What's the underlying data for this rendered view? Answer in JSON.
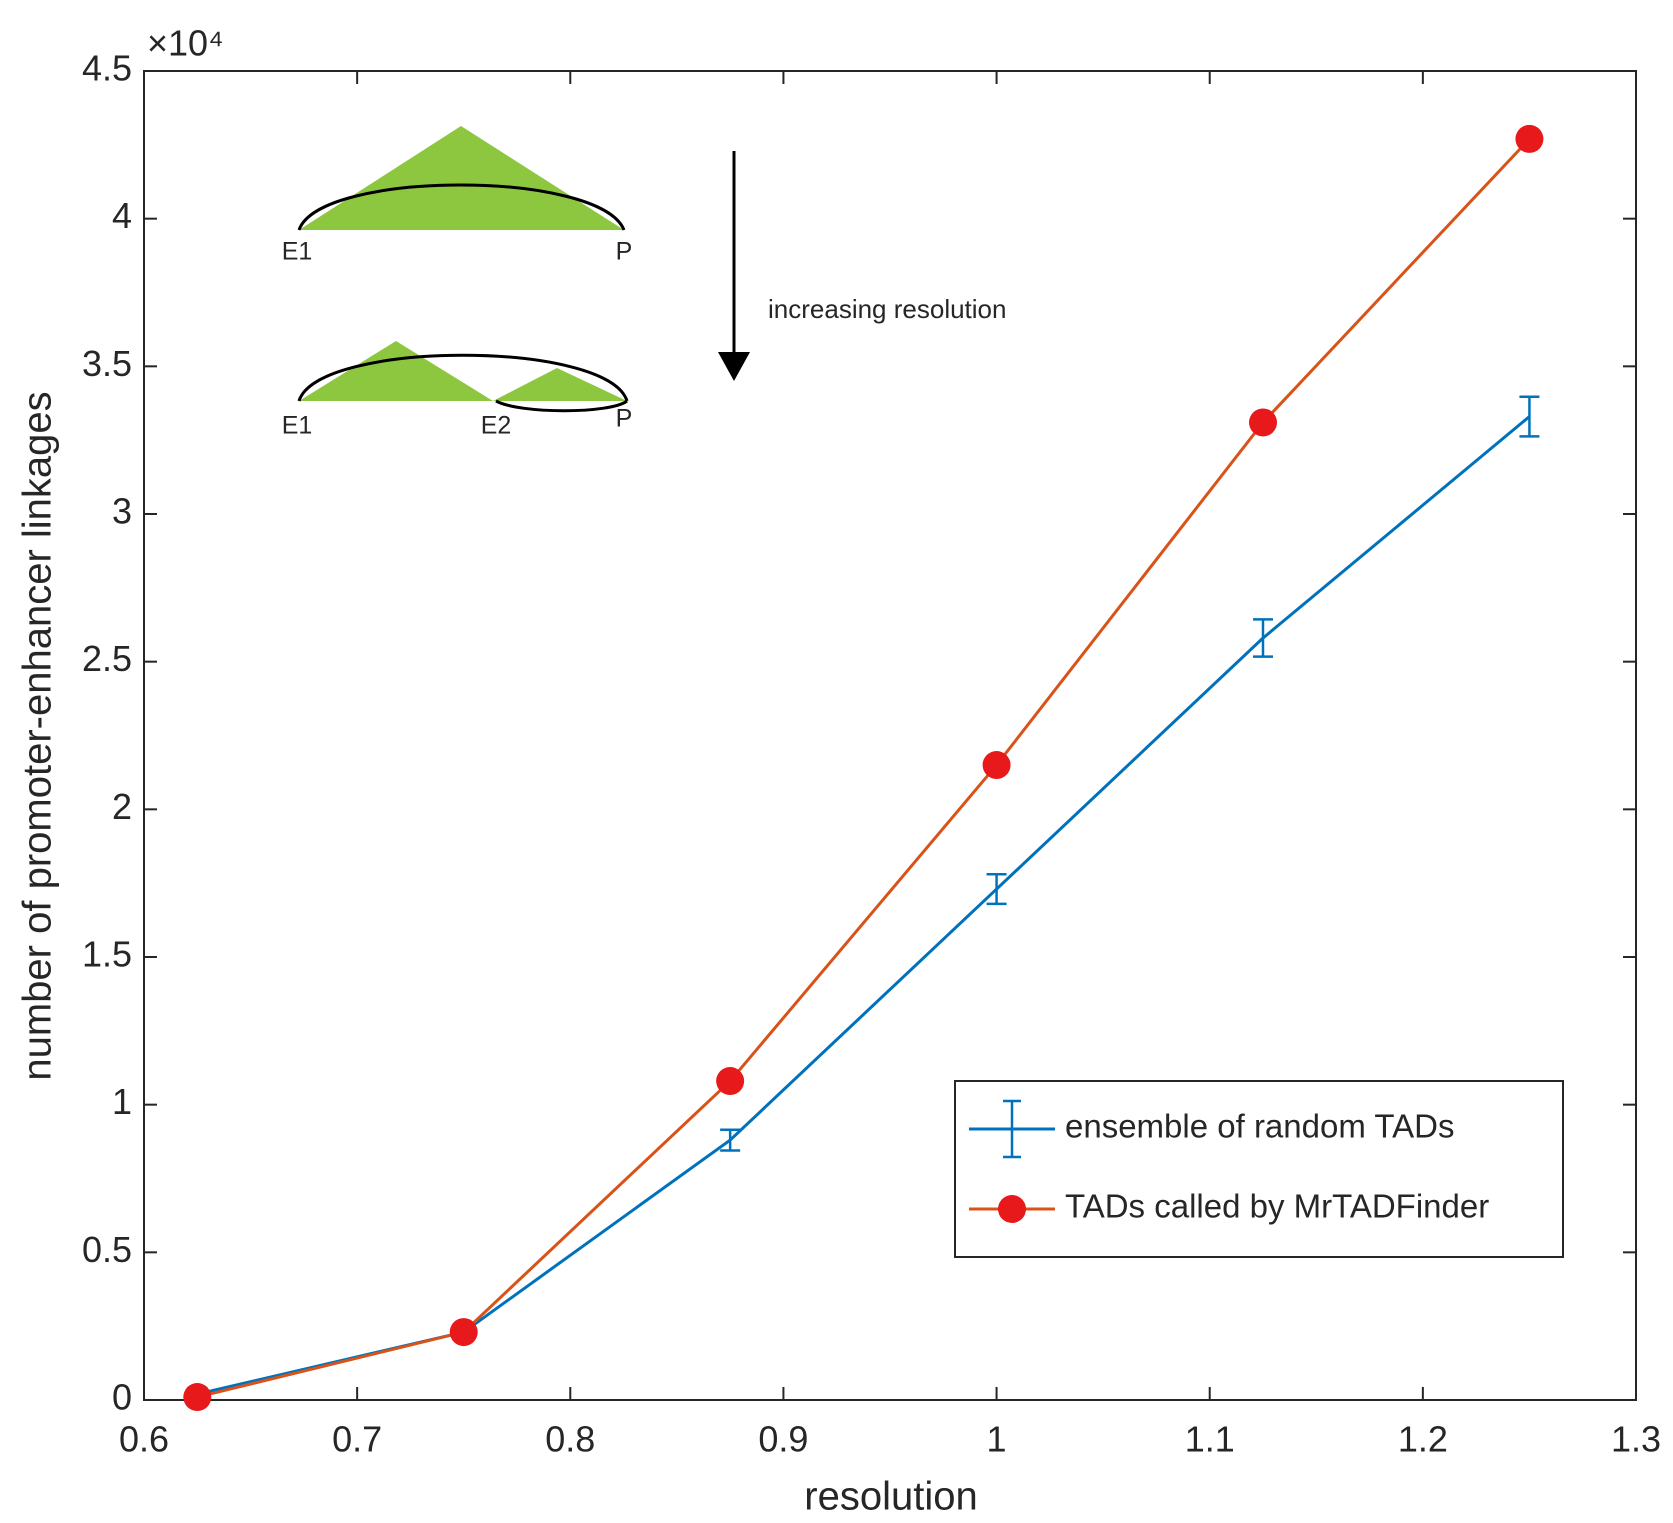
{
  "chart_data": {
    "type": "line",
    "x_label": "resolution",
    "y_label": "number of promoter-enhancer linkages",
    "y_scale_label": "×10⁴",
    "x": [
      0.625,
      0.75,
      0.875,
      1.0,
      1.125,
      1.25
    ],
    "series": [
      {
        "name": "ensemble of random TADs",
        "color": "#0072bd",
        "values": [
          0.02,
          0.23,
          0.88,
          1.73,
          2.58,
          3.33
        ],
        "errors": [
          0.02,
          0.02,
          0.035,
          0.05,
          0.063,
          0.067
        ]
      },
      {
        "name": "TADs called by MrTADFinder",
        "color": "#d95319",
        "marker_color": "#e8191b",
        "values": [
          0.01,
          0.23,
          1.08,
          2.15,
          3.31,
          4.27
        ]
      }
    ],
    "xlim": [
      0.6,
      1.3
    ],
    "xticks": [
      0.6,
      0.7,
      0.8,
      0.9,
      1,
      1.1,
      1.2,
      1.3
    ],
    "ylim": [
      0,
      4.5
    ],
    "yticks": [
      0,
      0.5,
      1,
      1.5,
      2,
      2.5,
      3,
      3.5,
      4,
      4.5
    ],
    "grid": false,
    "legend": "lower right",
    "inset": {
      "top_labels": [
        "E1",
        "P"
      ],
      "bottom_labels": [
        "E1",
        "E2",
        "P"
      ],
      "arrow_label": "increasing resolution"
    }
  }
}
